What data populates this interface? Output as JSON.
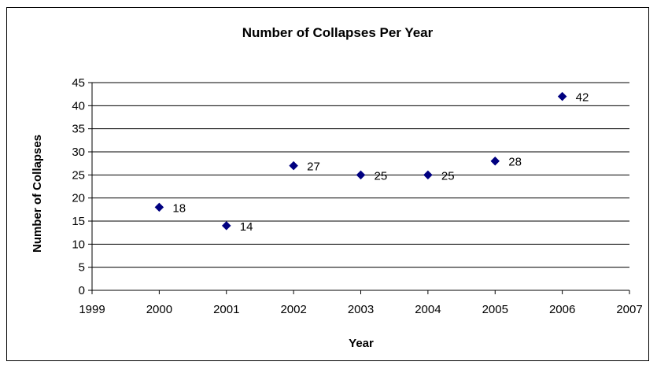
{
  "chart_data": {
    "type": "scatter",
    "title": "Number of Collapses Per Year",
    "xlabel": "Year",
    "ylabel": "Number of Collapses",
    "xlim": [
      1999,
      2007
    ],
    "ylim": [
      0,
      45
    ],
    "xticks": [
      1999,
      2000,
      2001,
      2002,
      2003,
      2004,
      2005,
      2006,
      2007
    ],
    "yticks": [
      0,
      5,
      10,
      15,
      20,
      25,
      30,
      35,
      40,
      45
    ],
    "grid": "horizontal",
    "marker": "diamond",
    "marker_color": "#000080",
    "data_labels": true,
    "series": [
      {
        "points": [
          {
            "x": 2000,
            "y": 18
          },
          {
            "x": 2001,
            "y": 14
          },
          {
            "x": 2002,
            "y": 27
          },
          {
            "x": 2003,
            "y": 25
          },
          {
            "x": 2004,
            "y": 25
          },
          {
            "x": 2005,
            "y": 28
          },
          {
            "x": 2006,
            "y": 42
          }
        ]
      }
    ]
  }
}
